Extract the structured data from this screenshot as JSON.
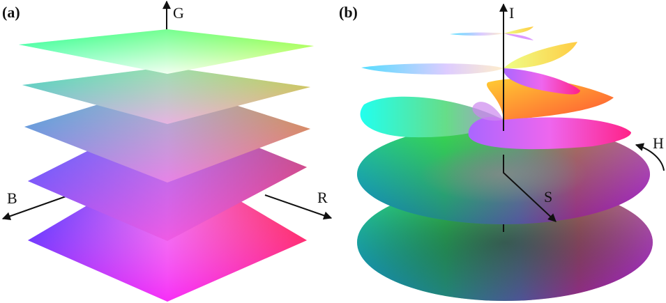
{
  "panel_a": {
    "label": "(a)",
    "axis_g": "G",
    "axis_b": "B",
    "axis_r": "R"
  },
  "panel_b": {
    "label": "(b)",
    "axis_i": "I",
    "axis_h": "H",
    "axis_s": "S"
  },
  "colors": {
    "red": "#ff0000",
    "green": "#00ff00",
    "blue": "#0000ff",
    "magenta": "#ff00ff",
    "cyan": "#00ffff",
    "yellow": "#ffff00",
    "white": "#ffffff",
    "black": "#000000"
  }
}
